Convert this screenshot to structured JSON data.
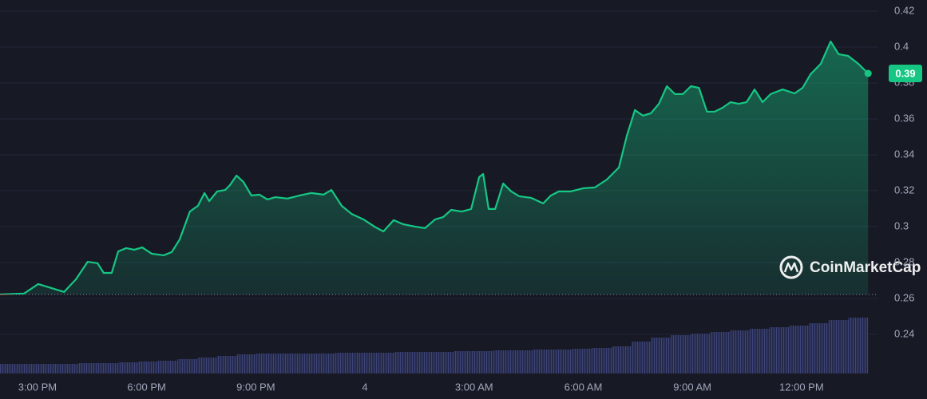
{
  "chart_data": {
    "type": "line",
    "color": "#16c784",
    "down_color": "#ea3943",
    "x": [
      13.97,
      14.63,
      15.02,
      15.73,
      16.06,
      16.38,
      16.65,
      16.82,
      17.04,
      17.22,
      17.44,
      17.66,
      17.88,
      18.14,
      18.47,
      18.69,
      18.91,
      19.19,
      19.41,
      19.59,
      19.72,
      19.94,
      20.16,
      20.29,
      20.47,
      20.66,
      20.88,
      21.1,
      21.32,
      21.54,
      21.87,
      22.2,
      22.53,
      22.86,
      23.08,
      23.36,
      23.63,
      23.96,
      24.29,
      24.51,
      24.79,
      25.05,
      25.38,
      25.65,
      25.93,
      26.15,
      26.37,
      26.66,
      26.92,
      27.14,
      27.25,
      27.4,
      27.58,
      27.8,
      28.02,
      28.24,
      28.57,
      28.9,
      29.11,
      29.33,
      29.66,
      29.99,
      30.32,
      30.65,
      30.98,
      31.2,
      31.42,
      31.64,
      31.86,
      32.08,
      32.3,
      32.52,
      32.74,
      32.96,
      33.18,
      33.4,
      33.61,
      33.83,
      34.05,
      34.27,
      34.49,
      34.71,
      34.93,
      35.15,
      35.48,
      35.81,
      36.03,
      36.25,
      36.53,
      36.8,
      37.02,
      37.28,
      37.56,
      37.83
    ],
    "values": [
      0.2622,
      0.2627,
      0.268,
      0.2636,
      0.2707,
      0.2804,
      0.2796,
      0.2742,
      0.2742,
      0.2862,
      0.288,
      0.2871,
      0.2884,
      0.2849,
      0.284,
      0.2858,
      0.2929,
      0.3084,
      0.3116,
      0.3187,
      0.3142,
      0.3196,
      0.3204,
      0.3231,
      0.3284,
      0.3249,
      0.3173,
      0.3178,
      0.3151,
      0.3164,
      0.3156,
      0.3173,
      0.3187,
      0.3178,
      0.3204,
      0.3116,
      0.3071,
      0.304,
      0.2996,
      0.2973,
      0.3036,
      0.3013,
      0.3,
      0.2991,
      0.304,
      0.3053,
      0.3093,
      0.3084,
      0.3098,
      0.3276,
      0.3293,
      0.3098,
      0.3098,
      0.324,
      0.3196,
      0.3169,
      0.316,
      0.3129,
      0.3173,
      0.3196,
      0.3196,
      0.3213,
      0.3218,
      0.3262,
      0.3329,
      0.3507,
      0.3649,
      0.3618,
      0.3631,
      0.3684,
      0.3782,
      0.3738,
      0.3738,
      0.3782,
      0.3773,
      0.364,
      0.364,
      0.3662,
      0.3693,
      0.3684,
      0.3693,
      0.3764,
      0.3693,
      0.3738,
      0.3764,
      0.3742,
      0.3773,
      0.3849,
      0.3907,
      0.4031,
      0.396,
      0.3951,
      0.3907,
      0.3853
    ],
    "reference_price": 0.2622,
    "current_price_label": "0.39",
    "xlim": [
      13.97,
      38.11
    ],
    "ylim": [
      0.2173,
      0.4262
    ],
    "xticks": [
      {
        "value": 15,
        "label": "3:00 PM"
      },
      {
        "value": 18,
        "label": "6:00 PM"
      },
      {
        "value": 21,
        "label": "9:00 PM"
      },
      {
        "value": 24,
        "label": "4"
      },
      {
        "value": 27,
        "label": "3:00 AM"
      },
      {
        "value": 30,
        "label": "6:00 AM"
      },
      {
        "value": 33,
        "label": "9:00 AM"
      },
      {
        "value": 36,
        "label": "12:00 PM"
      }
    ],
    "yticks": [
      0.24,
      0.26,
      0.28,
      0.3,
      0.32,
      0.34,
      0.36,
      0.38,
      0.4,
      0.42
    ],
    "grid": true,
    "volume": {
      "values": [
        12,
        12,
        12,
        12,
        13,
        13,
        14,
        15,
        16,
        18,
        20,
        22,
        24,
        25,
        25,
        25,
        25,
        26,
        26,
        26,
        27,
        27,
        27,
        28,
        28,
        29,
        29,
        30,
        30,
        31,
        32,
        34,
        40,
        45,
        48,
        50,
        52,
        54,
        56,
        58,
        60,
        63,
        67,
        70
      ],
      "ylim": [
        0,
        100
      ]
    },
    "watermark": "CoinMarketCap"
  }
}
